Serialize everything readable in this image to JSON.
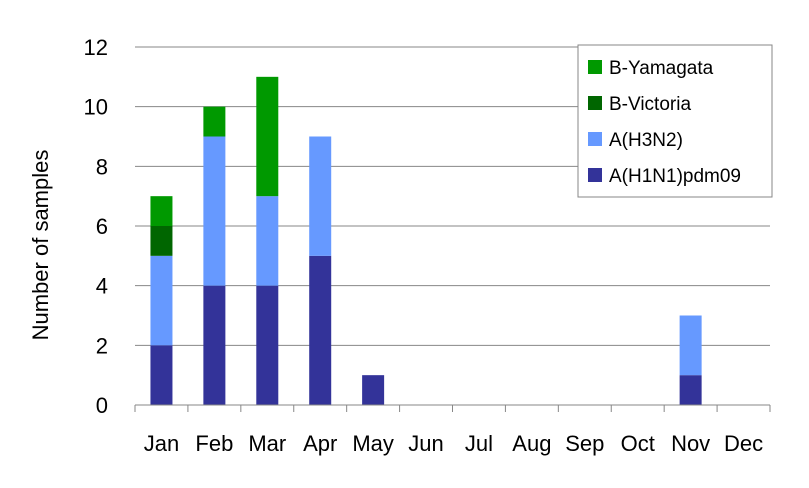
{
  "chart_data": {
    "type": "bar",
    "stacked": true,
    "title": "",
    "xlabel": "",
    "ylabel": "Number of samples",
    "ylim": [
      0,
      12
    ],
    "yticks": [
      "0",
      "2",
      "4",
      "6",
      "8",
      "10",
      "12"
    ],
    "grid": true,
    "legend_position": "top-right",
    "categories": [
      "Jan",
      "Feb",
      "Mar",
      "Apr",
      "May",
      "Jun",
      "Jul",
      "Aug",
      "Sep",
      "Oct",
      "Nov",
      "Dec"
    ],
    "series": [
      {
        "name": "A(H1N1)pdm09",
        "color": "#333399",
        "values": [
          2,
          4,
          4,
          5,
          1,
          0,
          0,
          0,
          0,
          0,
          1,
          0
        ]
      },
      {
        "name": "A(H3N2)",
        "color": "#6699FF",
        "values": [
          3,
          5,
          3,
          4,
          0,
          0,
          0,
          0,
          0,
          0,
          2,
          0
        ]
      },
      {
        "name": "B-Victoria",
        "color": "#006600",
        "values": [
          1,
          0,
          0,
          0,
          0,
          0,
          0,
          0,
          0,
          0,
          0,
          0
        ]
      },
      {
        "name": "B-Yamagata",
        "color": "#009900",
        "values": [
          1,
          1,
          4,
          0,
          0,
          0,
          0,
          0,
          0,
          0,
          0,
          0
        ]
      }
    ],
    "legend_order": [
      "B-Yamagata",
      "B-Victoria",
      "A(H3N2)",
      "A(H1N1)pdm09"
    ]
  }
}
